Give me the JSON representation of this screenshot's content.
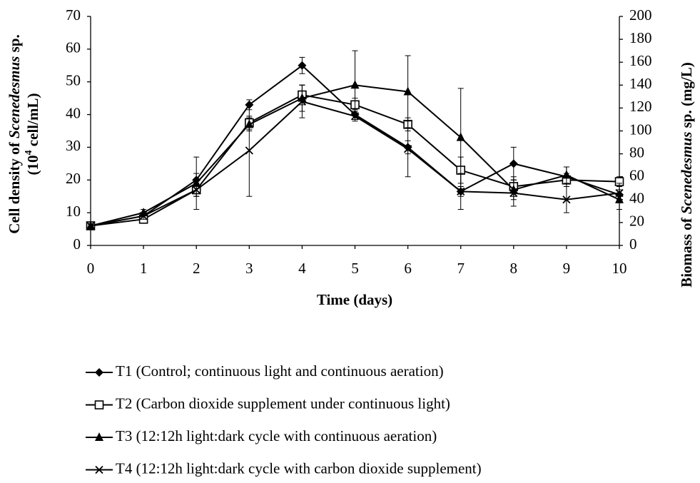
{
  "chart_data": {
    "type": "line",
    "ylabel": [
      "Cell density of ",
      "Scenedesmus",
      " sp."
    ],
    "ylabel_line2": [
      "(10",
      "4",
      " cell/mL)"
    ],
    "y2label": [
      "Biomass of ",
      "Scenedesmus",
      " sp. (mg/L)"
    ],
    "xlabel": "Time (days)",
    "x": [
      0,
      1,
      2,
      3,
      4,
      5,
      6,
      7,
      8,
      9,
      10
    ],
    "xlim": [
      0,
      10
    ],
    "xticks": [
      0,
      1,
      2,
      3,
      4,
      5,
      6,
      7,
      8,
      9,
      10
    ],
    "ylim": [
      0,
      70
    ],
    "yticks": [
      0,
      10,
      20,
      30,
      40,
      50,
      60,
      70
    ],
    "y2lim": [
      0,
      200
    ],
    "y2ticks": [
      0,
      20,
      40,
      60,
      80,
      100,
      120,
      140,
      160,
      180,
      200
    ],
    "series": [
      {
        "name": "T1 (Control; continuous light and continuous aeration)",
        "color": "#000000",
        "marker": "diamond",
        "values": [
          6,
          9,
          20,
          43,
          55,
          40,
          30,
          16.5,
          25,
          21,
          15.5
        ],
        "errors": [
          0.5,
          1,
          2,
          1.5,
          2.5,
          1.5,
          2,
          1.5,
          5,
          3,
          1.5
        ]
      },
      {
        "name": "T2 (Carbon dioxide supplement under continuous light)",
        "color": "#000000",
        "marker": "square",
        "values": [
          6,
          8,
          17,
          37.5,
          46,
          43,
          37,
          23,
          18,
          20,
          19.5
        ],
        "errors": [
          0.5,
          1,
          2,
          2,
          3,
          2,
          2,
          4,
          3,
          2,
          1.5
        ]
      },
      {
        "name": "T3 (12:12h light:dark cycle with continuous aeration)",
        "color": "#000000",
        "marker": "triangle",
        "values": [
          6,
          10,
          19,
          37,
          45,
          49,
          47,
          33,
          17,
          21.5,
          14
        ],
        "errors": [
          0.5,
          1,
          8,
          2,
          4,
          10.5,
          11,
          15,
          3,
          2.5,
          3
        ]
      },
      {
        "name": "T4 (12:12h light:dark cycle with carbon dioxide supplement)",
        "color": "#000000",
        "marker": "x",
        "values": [
          6,
          9,
          17,
          29,
          44,
          39.5,
          29.5,
          16.5,
          16,
          14,
          16
        ],
        "errors": [
          0.5,
          1,
          2,
          14,
          5,
          1.5,
          8.5,
          5.5,
          4,
          4,
          3
        ]
      }
    ]
  }
}
